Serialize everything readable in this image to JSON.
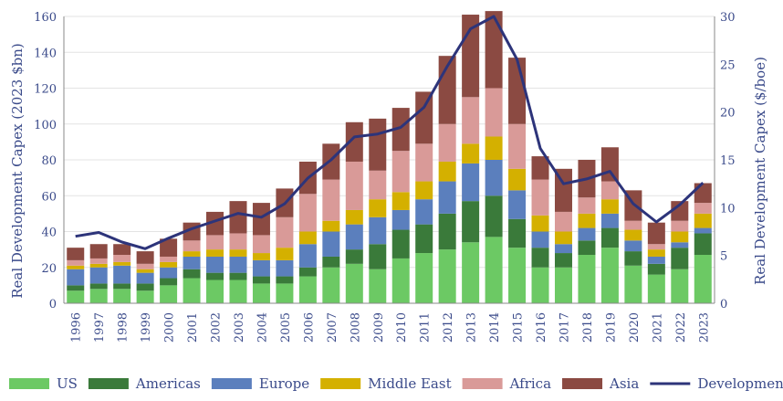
{
  "chart_data": {
    "type": "bar",
    "stacked": true,
    "categories": [
      "1996",
      "1997",
      "1998",
      "1999",
      "2000",
      "2001",
      "2002",
      "2003",
      "2004",
      "2005",
      "2006",
      "2007",
      "2008",
      "2009",
      "2010",
      "2011",
      "2012",
      "2013",
      "2014",
      "2015",
      "2016",
      "2017",
      "2018",
      "2019",
      "2020",
      "2021",
      "2022",
      "2023"
    ],
    "series": [
      {
        "name": "US",
        "color": "#6cc964",
        "values": [
          7,
          8,
          8,
          7,
          10,
          14,
          13,
          13,
          11,
          11,
          15,
          20,
          22,
          19,
          25,
          28,
          30,
          34,
          37,
          31,
          20,
          20,
          27,
          31,
          21,
          16,
          19,
          27
        ]
      },
      {
        "name": "Americas",
        "color": "#3a7a3a",
        "values": [
          3,
          3,
          3,
          4,
          4,
          5,
          4,
          4,
          4,
          4,
          5,
          6,
          8,
          14,
          16,
          16,
          20,
          23,
          23,
          16,
          11,
          8,
          8,
          11,
          8,
          6,
          12,
          12
        ]
      },
      {
        "name": "Europe",
        "color": "#5b7fbd",
        "values": [
          9,
          9,
          10,
          6,
          6,
          7,
          9,
          9,
          9,
          9,
          13,
          14,
          14,
          15,
          11,
          14,
          18,
          21,
          20,
          16,
          9,
          5,
          7,
          8,
          6,
          4,
          3,
          3
        ]
      },
      {
        "name": "Middle East",
        "color": "#d4b000",
        "values": [
          2,
          2,
          2,
          2,
          3,
          3,
          4,
          4,
          4,
          7,
          7,
          6,
          8,
          10,
          10,
          10,
          11,
          11,
          13,
          12,
          9,
          7,
          8,
          8,
          6,
          4,
          6,
          8
        ]
      },
      {
        "name": "Africa",
        "color": "#d99a98",
        "values": [
          3,
          3,
          4,
          3,
          3,
          6,
          8,
          9,
          10,
          17,
          21,
          23,
          27,
          16,
          23,
          21,
          21,
          26,
          27,
          25,
          20,
          11,
          9,
          10,
          5,
          3,
          6,
          6
        ]
      },
      {
        "name": "Asia",
        "color": "#8b4a42",
        "values": [
          7,
          8,
          6,
          7,
          10,
          10,
          13,
          18,
          18,
          16,
          18,
          20,
          22,
          29,
          24,
          29,
          38,
          46,
          43,
          37,
          13,
          24,
          21,
          19,
          17,
          12,
          11,
          11
        ]
      }
    ],
    "line_series": {
      "name": "Development Capex ($/boe)",
      "color": "#2d347a",
      "axis": "right",
      "values": [
        7.0,
        7.4,
        6.4,
        5.7,
        6.8,
        7.8,
        8.6,
        9.4,
        9.0,
        10.4,
        13.1,
        15.0,
        17.4,
        17.7,
        18.4,
        20.5,
        24.8,
        28.7,
        30.0,
        25.5,
        16.2,
        12.5,
        13.0,
        13.8,
        10.4,
        8.5,
        10.3,
        12.6
      ]
    },
    "xlabel": "",
    "ylabel": "Real Development Capex (2023 $bn)",
    "ylabel_right": "Real Development Capex ($/boe)",
    "ylim": [
      0,
      160
    ],
    "yticks": [
      0,
      20,
      40,
      60,
      80,
      100,
      120,
      140,
      160
    ],
    "ylim_right": [
      0,
      30
    ],
    "yticks_right": [
      0,
      5,
      10,
      15,
      20,
      25,
      30
    ],
    "grid": true,
    "legend_placement": "bottom"
  }
}
